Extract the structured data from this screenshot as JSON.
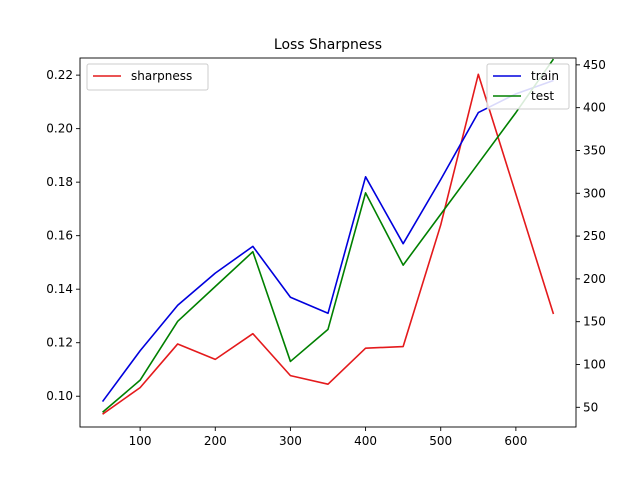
{
  "chart_data": {
    "type": "line",
    "title": "Loss Sharpness",
    "x": [
      50,
      100,
      150,
      200,
      250,
      300,
      350,
      400,
      450,
      500,
      550,
      600,
      650
    ],
    "xlim": [
      20,
      680
    ],
    "xticks": [
      100,
      200,
      300,
      400,
      500,
      600
    ],
    "left_axis": {
      "ylim": [
        0.0885,
        0.2264
      ],
      "ticks": [
        0.1,
        0.12,
        0.14,
        0.16,
        0.18,
        0.2,
        0.22
      ],
      "tick_labels": [
        "0.10",
        "0.12",
        "0.14",
        "0.16",
        "0.18",
        "0.20",
        "0.22"
      ]
    },
    "right_axis": {
      "ylim": [
        27,
        458
      ],
      "ticks": [
        50,
        100,
        150,
        200,
        250,
        300,
        350,
        400,
        450
      ],
      "tick_labels": [
        "50",
        "100",
        "150",
        "200",
        "250",
        "300",
        "350",
        "400",
        "450"
      ]
    },
    "series": [
      {
        "name": "sharpness",
        "axis": "right",
        "color": "#e41a1c",
        "values": [
          42,
          73,
          124,
          106,
          136,
          87,
          77,
          119,
          121,
          263,
          439,
          299,
          159
        ]
      },
      {
        "name": "train",
        "axis": "left",
        "color": "#0000dd",
        "values": [
          0.098,
          0.117,
          0.134,
          0.146,
          0.156,
          0.137,
          0.131,
          0.182,
          0.157,
          0.181,
          0.206,
          0.213,
          0.218
        ]
      },
      {
        "name": "test",
        "axis": "left",
        "color": "#008000",
        "values": [
          0.094,
          0.106,
          0.128,
          0.141,
          0.154,
          0.113,
          0.125,
          0.176,
          0.149,
          0.168,
          0.187,
          0.206,
          0.226
        ]
      }
    ],
    "legends": [
      {
        "placement": "top-left",
        "entries": [
          "sharpness"
        ]
      },
      {
        "placement": "top-right",
        "entries": [
          "train",
          "test"
        ]
      }
    ],
    "grid": false
  }
}
